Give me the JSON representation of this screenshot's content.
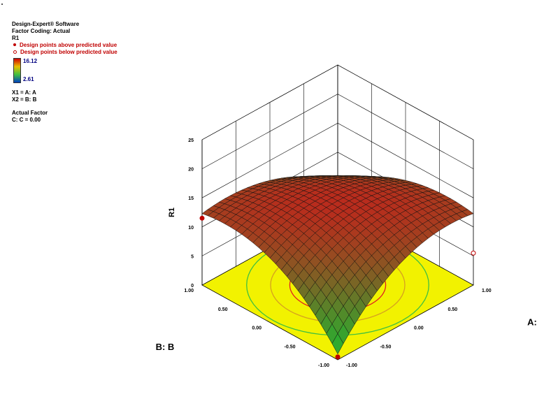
{
  "legend": {
    "software": "Design-Expert® Software",
    "factor_coding": "Factor Coding: Actual",
    "response": "R1",
    "design_points_above": "Design points above predicted value",
    "design_points_below": "Design points below predicted value",
    "color_max": "16.12",
    "color_min": "2.61",
    "x1": "X1 = A: A",
    "x2": "X2 = B: B",
    "actual_factor_title": "Actual Factor",
    "actual_factor": "C: C = 0.00"
  },
  "colors": {
    "floor": "#f2f200",
    "surface_top": "#cc1a1a",
    "surface_bottom": "#2faa2f",
    "contour_outer": "#e02020",
    "contour_inner": "#1a3aa8",
    "point": "#c00000"
  },
  "chart_data": {
    "type": "surface3d",
    "xlabel": "A: A",
    "ylabel": "B: B",
    "zlabel": "R1",
    "xlim": [
      -1,
      1
    ],
    "ylim": [
      -1,
      1
    ],
    "zlim": [
      0,
      25
    ],
    "x_ticks": [
      "-1.00",
      "-0.50",
      "0.00",
      "0.50",
      "1.00"
    ],
    "y_ticks": [
      "-1.00",
      "-0.50",
      "0.00",
      "0.50",
      "1.00"
    ],
    "z_ticks": [
      "0",
      "5",
      "10",
      "15",
      "20",
      "25"
    ],
    "surface_model": {
      "max": 16.12,
      "min": 2.61,
      "center": [
        0,
        0
      ]
    },
    "design_points": [
      {
        "x": -1,
        "y": 1,
        "z": 11.5,
        "position": "above"
      },
      {
        "x": 1,
        "y": -1,
        "z": 5.5,
        "position": "below"
      },
      {
        "x": -1,
        "y": -1,
        "z": 0.5,
        "position": "above"
      }
    ]
  }
}
